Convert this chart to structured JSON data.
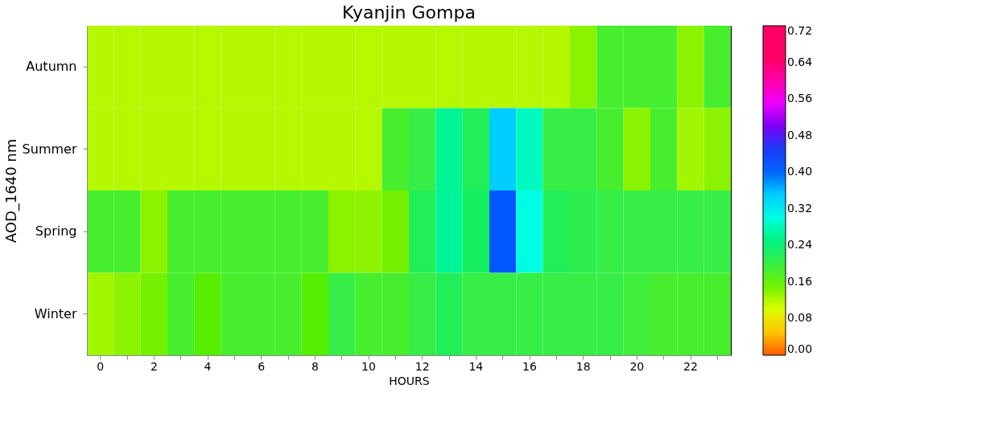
{
  "chart_data": {
    "type": "heatmap",
    "title": "Kyanjin Gompa",
    "xlabel": "HOURS",
    "ylabel": "AOD_1640 nm",
    "categories": [
      "0",
      null,
      "2",
      null,
      "4",
      null,
      "6",
      null,
      "8",
      null,
      "10",
      null,
      "12",
      null,
      "14",
      null,
      "16",
      null,
      "18",
      null,
      "20",
      null,
      "22",
      null
    ],
    "y_categories": [
      "Autumn",
      "Summer",
      "Spring",
      "Winter"
    ],
    "cells": [
      [
        0.12,
        0.12,
        0.12,
        0.12,
        0.12,
        0.12,
        0.12,
        0.12,
        0.12,
        0.12,
        0.12,
        0.12,
        0.12,
        0.12,
        0.12,
        0.12,
        0.12,
        0.12,
        0.14,
        0.18,
        0.18,
        0.18,
        0.14,
        0.18
      ],
      [
        0.12,
        0.12,
        0.12,
        0.12,
        0.12,
        0.12,
        0.12,
        0.12,
        0.12,
        0.12,
        0.12,
        0.18,
        0.2,
        0.26,
        0.22,
        0.35,
        0.28,
        0.2,
        0.2,
        0.18,
        0.14,
        0.18,
        0.13,
        0.14
      ],
      [
        0.18,
        0.18,
        0.14,
        0.18,
        0.18,
        0.18,
        0.18,
        0.18,
        0.18,
        0.14,
        0.14,
        0.15,
        0.22,
        0.26,
        0.23,
        0.42,
        0.3,
        0.22,
        0.21,
        0.2,
        0.2,
        0.2,
        0.2,
        0.2
      ],
      [
        0.13,
        0.14,
        0.15,
        0.18,
        0.16,
        0.18,
        0.18,
        0.18,
        0.16,
        0.2,
        0.18,
        0.18,
        0.2,
        0.22,
        0.2,
        0.2,
        0.2,
        0.2,
        0.2,
        0.2,
        0.19,
        0.18,
        0.18,
        0.18
      ]
    ],
    "clim": [
      0,
      0.72
    ],
    "cticks": [
      {
        "value": 0,
        "label": "0.00"
      },
      {
        "value": 0.08,
        "label": "0.08"
      },
      {
        "value": 0.16,
        "label": "0.16"
      },
      {
        "value": 0.24,
        "label": "0.24"
      },
      {
        "value": 0.32,
        "label": "0.32"
      },
      {
        "value": 0.4,
        "label": "0.40"
      },
      {
        "value": 0.48,
        "label": "0.48"
      },
      {
        "value": 0.56,
        "label": "0.56"
      },
      {
        "value": 0.64,
        "label": "0.64"
      },
      {
        "value": 0.72,
        "label": "0.72"
      }
    ],
    "colors": [
      "#ff5a00",
      "#ffff00",
      "#55ee00",
      "#00ee66",
      "#00ffff",
      "#0066ff",
      "#3311ee",
      "#ff00ff",
      "#ff0066"
    ],
    "grid": false
  }
}
